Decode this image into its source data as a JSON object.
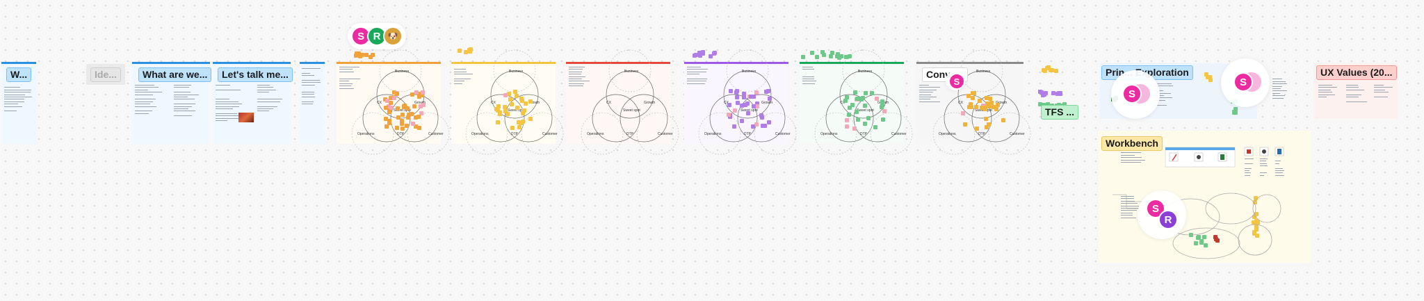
{
  "labels": {
    "frame1": "W...",
    "frame2": "Ide...",
    "frame3": "What are we...",
    "frame4": "Let's talk me...",
    "frame9": "Conve...",
    "tfs": "TFS ...",
    "principles": "Prin... Exploration",
    "ux_values": "UX Values (20...",
    "workbench": "Workbench"
  },
  "avatars": [
    {
      "initial": "S",
      "color": "#ec2aa1"
    },
    {
      "initial": "R",
      "color": "#1aa85a"
    },
    {
      "initial": "S",
      "color": "#ec2aa1"
    },
    {
      "initial": "S",
      "color": "#ec2aa1"
    },
    {
      "initial": "S",
      "color": "#ec2aa1"
    },
    {
      "initial": "S",
      "color": "#ec2aa1"
    },
    {
      "initial": "R",
      "color": "#8b3fd6"
    }
  ],
  "venn": {
    "top": "Business",
    "left": "CX",
    "right": "Growth",
    "center": "Sweet spot",
    "bottom_left": "Operations",
    "bottom_mid": "DTP",
    "bottom_right": "Customer"
  },
  "colors": {
    "blue": "#2b8fe0",
    "orange": "#f1a23a",
    "yellow": "#f5c542",
    "red": "#e64a3b",
    "purple": "#9b59e6",
    "green": "#1aa85a",
    "gray": "#8a8a8a"
  }
}
